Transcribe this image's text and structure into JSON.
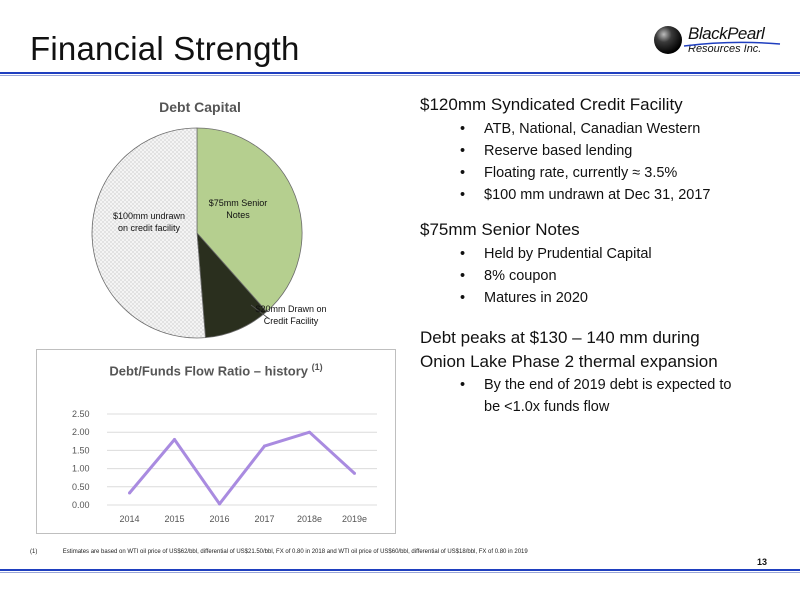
{
  "title": "Financial Strength",
  "logo": {
    "line1": "BlackPearl",
    "line2": "Resources Inc."
  },
  "pie": {
    "title": "Debt Capital",
    "slices": [
      {
        "label": "$75mm Senior Notes",
        "value": 75,
        "color": "#b5cf8f"
      },
      {
        "label": "$20mm Drawn on Credit Facility",
        "value": 20,
        "color": "#2a2f1e"
      },
      {
        "label": "$100mm undrawn on credit facility",
        "value": 100,
        "color": "#ececec"
      }
    ]
  },
  "sections": [
    {
      "heading": "$120mm Syndicated Credit Facility",
      "bullets": [
        "ATB, National, Canadian Western",
        "Reserve based lending",
        "Floating rate, currently ≈ 3.5%",
        "$100 mm undrawn at Dec 31, 2017"
      ]
    },
    {
      "heading": "$75mm Senior Notes",
      "bullets": [
        "Held by Prudential Capital",
        "8% coupon",
        "Matures in 2020"
      ]
    },
    {
      "heading_line1": "Debt peaks at $130 – 140 mm during",
      "heading_line2": "Onion Lake Phase 2 thermal expansion",
      "bullets": [
        "By the end of 2019 debt is expected to",
        "be <1.0x funds flow"
      ]
    }
  ],
  "chart_data": {
    "type": "line",
    "title": "Debt/Funds Flow Ratio – history",
    "title_note": "(1)",
    "categories": [
      "2014",
      "2015",
      "2016",
      "2017",
      "2018e",
      "2019e"
    ],
    "values": [
      0.33,
      1.8,
      0.03,
      1.62,
      2.0,
      0.87
    ],
    "ylim": [
      0,
      2.5
    ],
    "yticks": [
      "0.00",
      "0.50",
      "1.00",
      "1.50",
      "2.00",
      "2.50"
    ],
    "grid": true,
    "color": "#a98be0"
  },
  "footnote": {
    "marker": "(1)",
    "text": "Estimates are based on WTI oil price of US$62/bbl, differential of US$21.50/bbl, FX of 0.80 in 2018 and WTI oil price of US$60/bbl, differential of US$18/bbl, FX of 0.80 in 2019"
  },
  "page_number": "13"
}
